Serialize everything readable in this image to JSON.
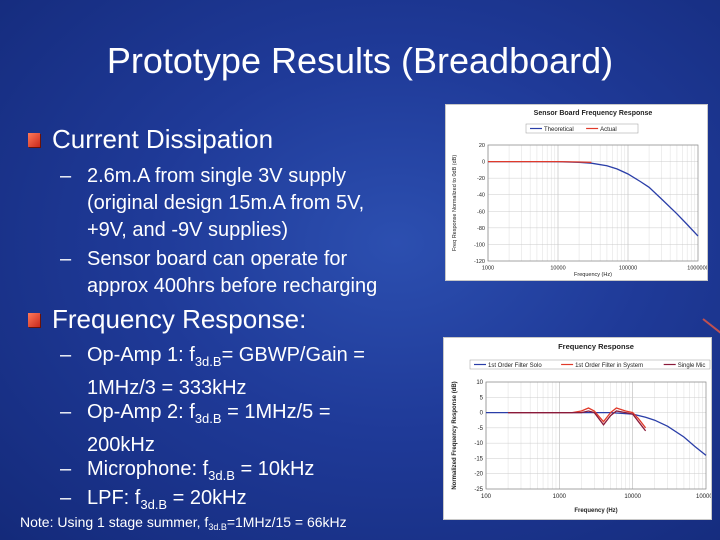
{
  "slide": {
    "title": "Prototype Results (Breadboard)",
    "bullets": {
      "current": {
        "label": "Current Dissipation",
        "items": [
          {
            "lines": [
              " 2.6m.A from single 3V supply",
              "(original design 15m.A from 5V,",
              "+9V, and -9V supplies)"
            ]
          },
          {
            "lines": [
              "Sensor board can operate for",
              "approx 400hrs before recharging"
            ]
          }
        ]
      },
      "frequency": {
        "label": "Frequency Response:",
        "items": [
          {
            "prefix": "Op-Amp 1: f",
            "sub": "3d.B",
            "suffix": "= GBWP/Gain =",
            "line2": "1MHz/3 = 333kHz"
          },
          {
            "prefix": "Op-Amp 2: f",
            "sub": "3d.B",
            "suffix": " = 1MHz/5 =",
            "line2": "200kHz"
          },
          {
            "prefix": "Microphone: f",
            "sub": "3d.B",
            "suffix": " = 10kHz"
          },
          {
            "prefix": "LPF: f",
            "sub": "3d.B",
            "suffix": " = 20kHz"
          }
        ]
      }
    },
    "note": {
      "prefix": "Note: Using 1 stage summer, f",
      "sub": "3d.B",
      "suffix": "=1MHz/15 = 66kHz"
    },
    "dash": "–"
  },
  "chart_data": [
    {
      "type": "line",
      "title": "Sensor Board Frequency Response",
      "xlabel": "Frequency (Hz)",
      "ylabel": "Freq Response Normalized to 0dB (dB)",
      "xscale": "log",
      "xlim": [
        1000,
        1000000
      ],
      "ylim": [
        -120,
        20
      ],
      "xticks": [
        "1000",
        "10000",
        "100000",
        "1000000"
      ],
      "yticks": [
        "20",
        "0",
        "-20",
        "-40",
        "-60",
        "-80",
        "-100",
        "-120"
      ],
      "legend_position": "top",
      "grid": true,
      "series": [
        {
          "name": "Theoretical",
          "color": "#2a3ea8",
          "x": [
            1000,
            2000,
            5000,
            10000,
            20000,
            30000,
            50000,
            70000,
            100000,
            150000,
            200000,
            300000,
            500000,
            700000,
            1000000
          ],
          "y": [
            0,
            0,
            0,
            -0.2,
            -1,
            -2,
            -5,
            -9,
            -15,
            -24,
            -31,
            -45,
            -63,
            -76,
            -90
          ]
        },
        {
          "name": "Actual",
          "color": "#e03a2a",
          "x": [
            1000,
            2000,
            5000,
            10000,
            20000,
            30000
          ],
          "y": [
            0,
            0,
            0,
            0,
            -0.5,
            -1
          ]
        }
      ]
    },
    {
      "type": "line",
      "title": "Frequency Response",
      "xlabel": "Frequency (Hz)",
      "ylabel": "Normalized Frequency Response (dB)",
      "xscale": "log",
      "xlim": [
        100,
        100000
      ],
      "ylim": [
        -25,
        10
      ],
      "xticks": [
        "100",
        "1000",
        "10000",
        "100000"
      ],
      "yticks": [
        "10",
        "5",
        "0",
        "-5",
        "-10",
        "-15",
        "-20",
        "-25"
      ],
      "legend_position": "top",
      "grid": true,
      "series": [
        {
          "name": "1st Order Filter Solo",
          "color": "#2a3ea8",
          "x": [
            100,
            200,
            500,
            1000,
            2000,
            5000,
            10000,
            15000,
            20000,
            30000,
            50000,
            70000,
            100000
          ],
          "y": [
            0,
            0,
            0,
            0,
            0,
            0,
            -0.5,
            -1.5,
            -2.5,
            -4.5,
            -8,
            -11,
            -14
          ]
        },
        {
          "name": "1st Order Filter in System",
          "color": "#e03a2a",
          "x": [
            200,
            500,
            1000,
            1500,
            2000,
            2500,
            3000,
            4000,
            5000,
            6000,
            8000,
            10000,
            12000,
            15000
          ],
          "y": [
            0,
            0,
            0,
            0,
            0.5,
            1.5,
            0.5,
            -3,
            0,
            1.5,
            0.5,
            0,
            -2,
            -5
          ]
        },
        {
          "name": "Single Mic",
          "color": "#8a1a3a",
          "x": [
            200,
            500,
            1000,
            1500,
            2000,
            2500,
            3000,
            4000,
            5000,
            6000,
            8000,
            10000,
            12000,
            15000
          ],
          "y": [
            0,
            0,
            0,
            0,
            0,
            0.5,
            0,
            -4,
            -1,
            0.5,
            0,
            -0.5,
            -3,
            -6
          ]
        }
      ]
    }
  ]
}
